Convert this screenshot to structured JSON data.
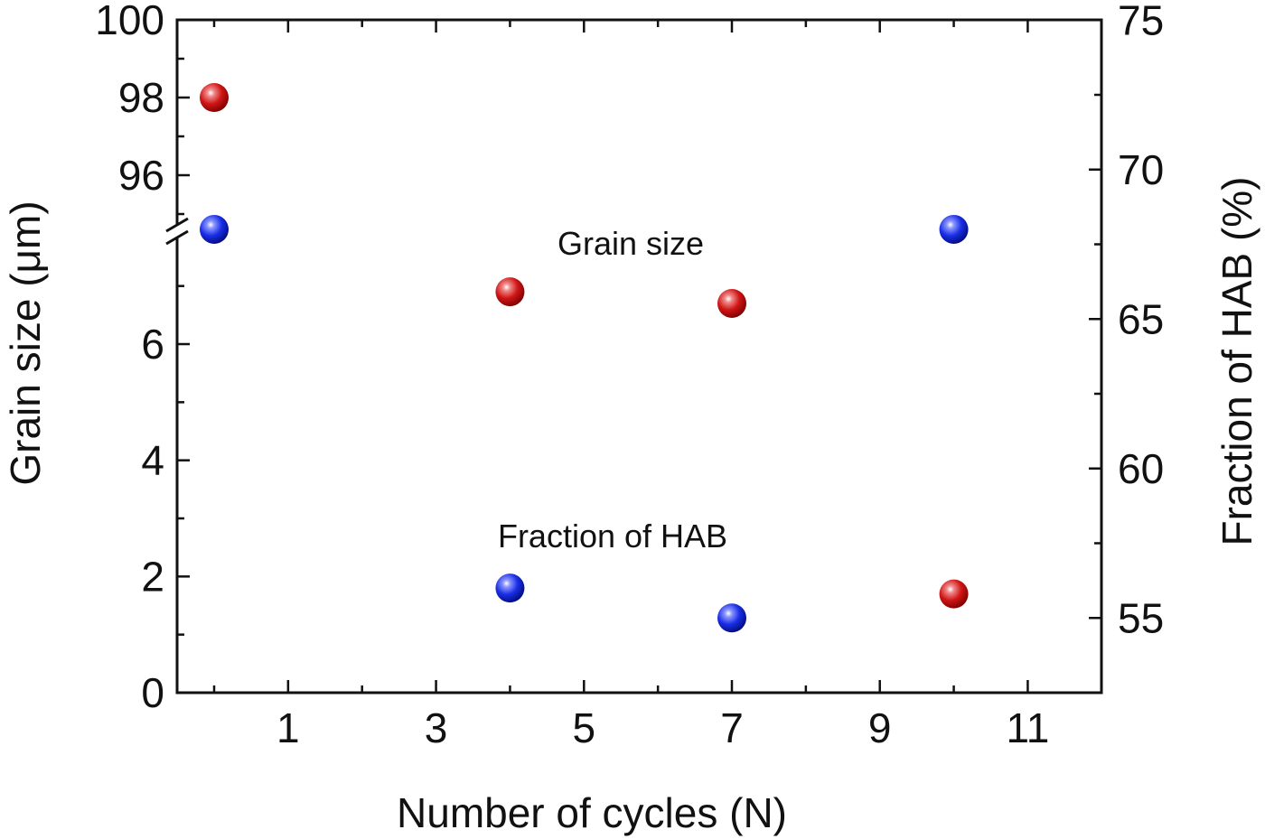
{
  "chart_data": {
    "type": "scatter",
    "title": "",
    "xlabel": "Number of cycles (N)",
    "ylabel_left": "Grain size (μm)",
    "ylabel_right": "Fraction of HAB (%)",
    "x_ticks": [
      "1",
      "3",
      "5",
      "7",
      "9",
      "11"
    ],
    "xlim": [
      -0.5,
      12
    ],
    "y_left_lower_ticks": [
      "0",
      "2",
      "4",
      "6"
    ],
    "y_left_lower_range": [
      0,
      8
    ],
    "y_left_upper_ticks": [
      "96",
      "98",
      "100"
    ],
    "y_left_upper_range": [
      94.5,
      100
    ],
    "y_right_ticks": [
      "55",
      "60",
      "65",
      "70",
      "75"
    ],
    "y_right_range": [
      52.5,
      75
    ],
    "axis_break": "left y-axis between 8 and 94.5",
    "grid": false,
    "series": [
      {
        "name": "Grain size",
        "axis": "left",
        "color": "#d01515",
        "points": [
          {
            "x": 0,
            "y": 98.0
          },
          {
            "x": 4,
            "y": 6.9
          },
          {
            "x": 7,
            "y": 6.7
          },
          {
            "x": 10,
            "y": 1.7
          }
        ]
      },
      {
        "name": "Fraction of HAB",
        "axis": "right",
        "color": "#1a2ee6",
        "points": [
          {
            "x": 0,
            "y": 68.0
          },
          {
            "x": 4,
            "y": 56.0
          },
          {
            "x": 7,
            "y": 55.0
          },
          {
            "x": 10,
            "y": 68.0
          }
        ]
      }
    ],
    "annotations": [
      {
        "text": "Grain size"
      },
      {
        "text": "Fraction of HAB"
      }
    ]
  }
}
